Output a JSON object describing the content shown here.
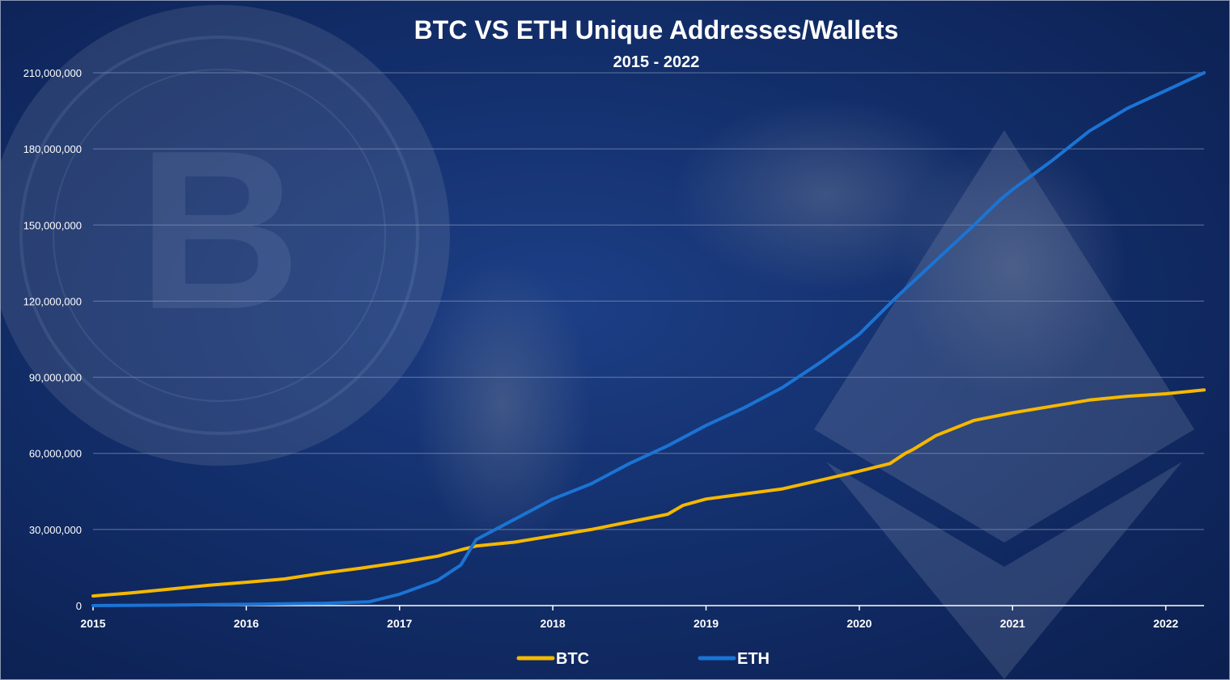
{
  "colors": {
    "btc": "#f5b800",
    "eth": "#1b74d4",
    "grid": "#7f8fb5",
    "text": "#ffffff"
  },
  "chart_data": {
    "type": "line",
    "title": "BTC VS ETH Unique Addresses/Wallets",
    "subtitle": "2015 - 2022",
    "xlabel": "",
    "ylabel": "",
    "x_ticks": [
      "2015",
      "2016",
      "2017",
      "2018",
      "2019",
      "2020",
      "2021",
      "2022"
    ],
    "y_ticks": [
      "0",
      "30,000,000",
      "60,000,000",
      "90,000,000",
      "120,000,000",
      "150,000,000",
      "180,000,000",
      "210,000,000"
    ],
    "xlim": [
      2015,
      2022.25
    ],
    "ylim": [
      0,
      210000000
    ],
    "grid": true,
    "legend_position": "bottom",
    "series": [
      {
        "name": "BTC",
        "color": "#f5b800",
        "x": [
          2015.0,
          2015.25,
          2015.5,
          2015.75,
          2016.0,
          2016.25,
          2016.5,
          2016.75,
          2017.0,
          2017.25,
          2017.4,
          2017.5,
          2017.75,
          2018.0,
          2018.25,
          2018.5,
          2018.75,
          2018.85,
          2019.0,
          2019.25,
          2019.5,
          2019.75,
          2020.0,
          2020.2,
          2020.3,
          2020.35,
          2020.5,
          2020.75,
          2021.0,
          2021.25,
          2021.5,
          2021.75,
          2022.0,
          2022.25
        ],
        "y": [
          3800000,
          5000000,
          6500000,
          8000000,
          9200000,
          10500000,
          12800000,
          14800000,
          17000000,
          19500000,
          22000000,
          23500000,
          25000000,
          27500000,
          30000000,
          33000000,
          36000000,
          39500000,
          42000000,
          44000000,
          46000000,
          49500000,
          53000000,
          56000000,
          60000000,
          61500000,
          67000000,
          73000000,
          76000000,
          78500000,
          81000000,
          82500000,
          83500000,
          85000000
        ]
      },
      {
        "name": "ETH",
        "color": "#1b74d4",
        "x": [
          2015.0,
          2015.5,
          2016.0,
          2016.5,
          2016.8,
          2017.0,
          2017.25,
          2017.4,
          2017.5,
          2017.75,
          2018.0,
          2018.25,
          2018.5,
          2018.75,
          2019.0,
          2019.25,
          2019.5,
          2019.75,
          2020.0,
          2020.25,
          2020.5,
          2020.75,
          2020.92,
          2021.0,
          2021.25,
          2021.5,
          2021.75,
          2022.0,
          2022.25
        ],
        "y": [
          0,
          200000,
          500000,
          900000,
          1500000,
          4500000,
          10000000,
          16000000,
          26000000,
          34000000,
          42000000,
          48000000,
          56000000,
          63000000,
          71000000,
          78000000,
          86000000,
          96000000,
          107000000,
          122000000,
          136000000,
          150000000,
          160000000,
          164000000,
          175000000,
          187000000,
          196000000,
          203000000,
          210000000
        ]
      }
    ]
  }
}
